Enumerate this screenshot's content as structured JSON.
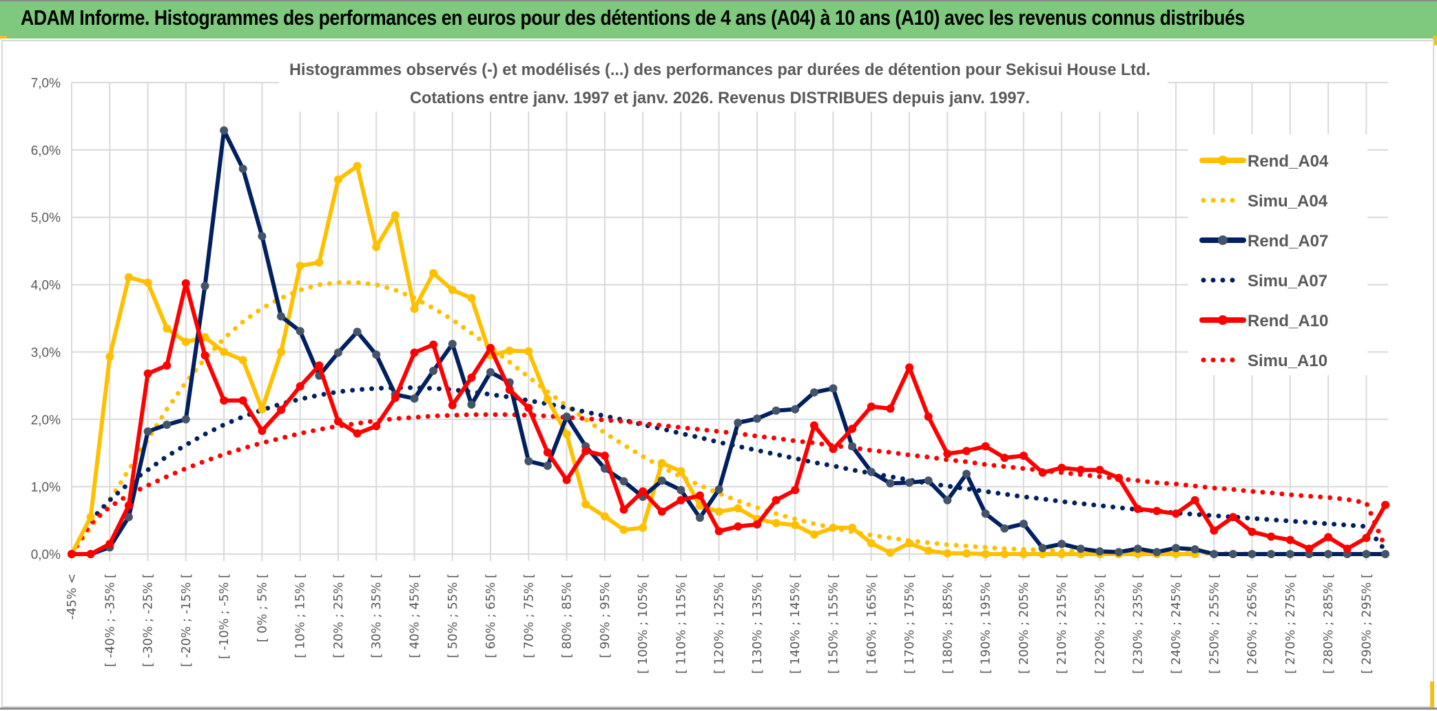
{
  "banner": {
    "title": "ADAM Informe. Histogrammes des performances en euros pour des détentions de 4 ans (A04) à 10 ans (A10) avec les revenus connus distribués"
  },
  "colors": {
    "banner_bg": "#7ec97e",
    "a04": "#ffc000",
    "a07": "#002060",
    "a07_marker": "#44546a",
    "a10": "#ff0000",
    "grid": "#d9d9d9",
    "text": "#595959"
  },
  "chart_data": {
    "type": "line",
    "title": "Histogrammes observés (-) et modélisés (...) des performances par durées de détention pour Sekisui House Ltd.",
    "subtitle": "Cotations entre janv. 1997 et janv. 2026. Revenus DISTRIBUES depuis janv. 1997.",
    "xlabel": "",
    "ylabel": "",
    "ylim": [
      0,
      7
    ],
    "y_unit": "%",
    "yticks": [
      "0,0%",
      "1,0%",
      "2,0%",
      "3,0%",
      "4,0%",
      "5,0%",
      "6,0%",
      "7,0%"
    ],
    "grid": true,
    "legend_position": "right",
    "categories": [
      "-45% <",
      "[ -45% ; -40% [",
      "[ -40% ; -35% [",
      "[ -35% ; -30% [",
      "[ -30% ; -25% [",
      "[ -25% ; -20% [",
      "[ -20% ; -15% [",
      "[ -15% ; -10% [",
      "[ -10% ; -5% [",
      "[ -5% ; 0% [",
      "[ 0% ; 5% [",
      "[ 5% ; 10% [",
      "[ 10% ; 15% [",
      "[ 15% ; 20% [",
      "[ 20% ; 25% [",
      "[ 25% ; 30% [",
      "[ 30% ; 35% [",
      "[ 35% ; 40% [",
      "[ 40% ; 45% [",
      "[ 45% ; 50% [",
      "[ 50% ; 55% [",
      "[ 55% ; 60% [",
      "[ 60% ; 65% [",
      "[ 65% ; 70% [",
      "[ 70% ; 75% [",
      "[ 75% ; 80% [",
      "[ 80% ; 85% [",
      "[ 85% ; 90% [",
      "[ 90% ; 95% [",
      "[ 95% ; 100% [",
      "[ 100% ; 105% [",
      "[ 105% ; 110% [",
      "[ 110% ; 115% [",
      "[ 115% ; 120% [",
      "[ 120% ; 125% [",
      "[ 125% ; 130% [",
      "[ 130% ; 135% [",
      "[ 135% ; 140% [",
      "[ 140% ; 145% [",
      "[ 145% ; 150% [",
      "[ 150% ; 155% [",
      "[ 155% ; 160% [",
      "[ 160% ; 165% [",
      "[ 165% ; 170% [",
      "[ 170% ; 175% [",
      "[ 175% ; 180% [",
      "[ 180% ; 185% [",
      "[ 185% ; 190% [",
      "[ 190% ; 195% [",
      "[ 195% ; 200% [",
      "[ 200% ; 205% [",
      "[ 205% ; 210% [",
      "[ 210% ; 215% [",
      "[ 215% ; 220% [",
      "[ 220% ; 225% [",
      "[ 225% ; 230% [",
      "[ 230% ; 235% [",
      "[ 235% ; 240% [",
      "[ 240% ; 245% [",
      "[ 245% ; 250% [",
      "[ 250% ; 255% [",
      "[ 255% ; 260% [",
      "[ 260% ; 265% [",
      "[ 265% ; 270% [",
      "[ 270% ; 275% [",
      "[ 275% ; 280% [",
      "[ 280% ; 285% [",
      "[ 285% ; 290% [",
      "[ 290% ; 295% [",
      "[ 295% ; 300% ["
    ],
    "visible_tick_every": 2,
    "series": [
      {
        "name": "Rend_A04",
        "style": "solid-marker",
        "color": "#ffc000",
        "values": [
          0.0,
          0.55,
          2.93,
          4.11,
          4.03,
          3.35,
          3.15,
          3.22,
          3.0,
          2.88,
          2.15,
          3.0,
          4.28,
          4.33,
          5.56,
          5.76,
          4.56,
          5.03,
          3.64,
          4.17,
          3.92,
          3.8,
          2.95,
          3.02,
          3.01,
          2.3,
          1.78,
          0.74,
          0.56,
          0.36,
          0.39,
          1.35,
          1.23,
          0.72,
          0.63,
          0.68,
          0.52,
          0.46,
          0.43,
          0.29,
          0.39,
          0.39,
          0.16,
          0.02,
          0.16,
          0.05,
          0.01,
          0.01,
          0.0,
          0.0,
          0.0,
          0.0,
          0.0,
          0.0,
          0.0,
          0.0,
          0.0,
          0.0,
          0.0,
          0.0,
          null,
          null,
          null,
          null,
          null,
          null,
          null,
          null,
          null,
          null
        ]
      },
      {
        "name": "Simu_A04",
        "style": "dotted",
        "color": "#ffc000",
        "values": [
          0.0,
          0.4,
          0.8,
          1.25,
          1.7,
          2.15,
          2.55,
          2.9,
          3.2,
          3.45,
          3.65,
          3.8,
          3.92,
          4.0,
          4.03,
          4.03,
          4.0,
          3.92,
          3.8,
          3.65,
          3.48,
          3.28,
          3.07,
          2.85,
          2.63,
          2.41,
          2.2,
          2.0,
          1.8,
          1.62,
          1.45,
          1.29,
          1.15,
          1.02,
          0.9,
          0.79,
          0.69,
          0.6,
          0.52,
          0.45,
          0.39,
          0.33,
          0.28,
          0.24,
          0.2,
          0.17,
          0.14,
          0.12,
          0.1,
          0.08,
          0.07,
          0.06,
          0.05,
          0.04,
          0.03,
          0.03,
          0.02,
          0.02,
          0.01,
          0.01,
          0.01,
          0.01,
          0.0,
          0.0,
          0.0,
          0.0,
          0.0,
          0.0,
          0.0,
          0.0
        ]
      },
      {
        "name": "Rend_A07",
        "style": "solid-marker",
        "color": "#002060",
        "values": [
          0.0,
          0.0,
          0.1,
          0.55,
          1.82,
          1.92,
          2.0,
          3.98,
          6.29,
          5.72,
          4.72,
          3.53,
          3.31,
          2.65,
          2.99,
          3.3,
          2.96,
          2.37,
          2.31,
          2.72,
          3.12,
          2.22,
          2.7,
          2.55,
          1.38,
          1.31,
          2.04,
          1.6,
          1.27,
          1.08,
          0.85,
          1.09,
          0.95,
          0.54,
          0.96,
          1.95,
          2.01,
          2.13,
          2.15,
          2.4,
          2.46,
          1.6,
          1.22,
          1.05,
          1.06,
          1.09,
          0.8,
          1.19,
          0.6,
          0.38,
          0.45,
          0.09,
          0.15,
          0.08,
          0.04,
          0.03,
          0.08,
          0.03,
          0.09,
          0.07,
          0.0,
          0.0,
          0.0,
          0.0,
          0.0,
          0.0,
          0.0,
          0.0,
          0.0,
          0.0
        ]
      },
      {
        "name": "Simu_A07",
        "style": "dotted",
        "color": "#002060",
        "values": [
          0.0,
          0.5,
          0.8,
          1.05,
          1.25,
          1.45,
          1.62,
          1.78,
          1.92,
          2.04,
          2.14,
          2.23,
          2.3,
          2.36,
          2.41,
          2.44,
          2.46,
          2.47,
          2.47,
          2.46,
          2.44,
          2.41,
          2.37,
          2.33,
          2.28,
          2.23,
          2.17,
          2.11,
          2.05,
          1.99,
          1.92,
          1.86,
          1.79,
          1.73,
          1.66,
          1.6,
          1.54,
          1.48,
          1.42,
          1.36,
          1.31,
          1.25,
          1.2,
          1.15,
          1.1,
          1.05,
          1.01,
          0.97,
          0.93,
          0.89,
          0.85,
          0.82,
          0.78,
          0.75,
          0.72,
          0.69,
          0.66,
          0.64,
          0.61,
          0.59,
          0.57,
          0.55,
          0.53,
          0.51,
          0.49,
          0.47,
          0.45,
          0.43,
          0.41,
          0.05
        ]
      },
      {
        "name": "Rend_A10",
        "style": "solid-marker",
        "color": "#ff0000",
        "values": [
          0.0,
          0.0,
          0.15,
          0.72,
          2.68,
          2.8,
          4.02,
          2.95,
          2.28,
          2.28,
          1.83,
          2.14,
          2.49,
          2.8,
          1.97,
          1.79,
          1.9,
          2.32,
          2.99,
          3.11,
          2.21,
          2.62,
          3.06,
          2.44,
          2.17,
          1.51,
          1.1,
          1.53,
          1.46,
          0.66,
          0.93,
          0.63,
          0.8,
          0.87,
          0.34,
          0.41,
          0.44,
          0.8,
          0.95,
          1.91,
          1.56,
          1.86,
          2.19,
          2.16,
          2.77,
          2.04,
          1.49,
          1.53,
          1.6,
          1.43,
          1.46,
          1.21,
          1.28,
          1.25,
          1.25,
          1.13,
          0.67,
          0.64,
          0.6,
          0.8,
          0.35,
          0.55,
          0.33,
          0.26,
          0.21,
          0.08,
          0.25,
          0.08,
          0.24,
          0.73
        ]
      },
      {
        "name": "Simu_A10",
        "style": "dotted",
        "color": "#ff0000",
        "values": [
          0.0,
          0.45,
          0.7,
          0.88,
          1.02,
          1.15,
          1.27,
          1.38,
          1.48,
          1.57,
          1.65,
          1.72,
          1.79,
          1.85,
          1.9,
          1.94,
          1.98,
          2.01,
          2.03,
          2.05,
          2.06,
          2.07,
          2.07,
          2.07,
          2.06,
          2.05,
          2.03,
          2.01,
          1.99,
          1.97,
          1.94,
          1.91,
          1.88,
          1.85,
          1.82,
          1.79,
          1.75,
          1.72,
          1.68,
          1.65,
          1.61,
          1.58,
          1.54,
          1.51,
          1.47,
          1.44,
          1.4,
          1.37,
          1.33,
          1.3,
          1.27,
          1.24,
          1.21,
          1.18,
          1.15,
          1.12,
          1.09,
          1.06,
          1.04,
          1.01,
          0.98,
          0.96,
          0.93,
          0.91,
          0.88,
          0.86,
          0.84,
          0.81,
          0.76,
          0.1
        ]
      }
    ]
  }
}
